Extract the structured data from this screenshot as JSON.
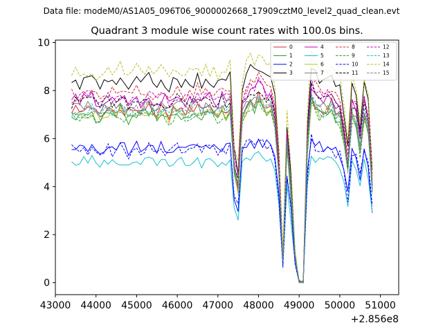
{
  "chart_data": {
    "type": "line",
    "suptitle": "Data file: modeM0/AS1A05_096T06_9000002668_17909cztM0_level2_quad_clean.evt",
    "title": "Quadrant 3 module wise count rates with 100.0s bins.",
    "xlabel": "",
    "ylabel": "",
    "x_offset_label": "+2.856e8",
    "xlim": [
      43000,
      51450
    ],
    "ylim": [
      -0.5,
      10.1
    ],
    "xticks": [
      43000,
      44000,
      45000,
      46000,
      47000,
      48000,
      49000,
      50000,
      51000
    ],
    "yticks": [
      0,
      2,
      4,
      6,
      8,
      10
    ],
    "legend_position": "top-right",
    "x_start": 43400,
    "x_step": 100,
    "template": [
      1,
      1,
      0.99,
      1.01,
      1,
      1.02,
      0.99,
      0.98,
      1,
      1.01,
      1,
      0.99,
      1.02,
      1,
      0.98,
      1,
      1.01,
      0.99,
      1,
      1.02,
      1,
      0.99,
      1.01,
      1,
      0.98,
      1,
      1.02,
      1,
      0.99,
      1.01,
      1,
      1.02,
      0.99,
      1,
      1.01,
      1,
      0.99,
      1.02,
      1,
      1.03,
      0.66,
      0.56,
      0.98,
      1.03,
      1.06,
      1.04,
      1.08,
      1.05,
      1.02,
      1.02,
      0.95,
      0.65,
      0.13,
      0.8,
      0.53,
      0.15,
      0.0,
      0.0,
      0.79,
      1.08,
      1.03,
      1.01,
      1.0,
      1.02,
      1.03,
      0.98,
      0.97,
      0.82,
      0.66,
      0.98,
      0.94,
      0.78,
      0.99,
      0.9,
      0.55
    ],
    "series": [
      {
        "name": "0",
        "color": "#d62728",
        "dash": false,
        "base": 7.2,
        "jitter": 0.28
      },
      {
        "name": "1",
        "color": "#2ca02c",
        "dash": false,
        "base": 7.0,
        "jitter": 0.28
      },
      {
        "name": "2",
        "color": "#0000ff",
        "dash": false,
        "base": 5.6,
        "jitter": 0.25
      },
      {
        "name": "3",
        "color": "#000000",
        "dash": false,
        "base": 8.35,
        "jitter": 0.25
      },
      {
        "name": "4",
        "color": "#bf00bf",
        "dash": false,
        "base": 7.6,
        "jitter": 0.28
      },
      {
        "name": "5",
        "color": "#17becf",
        "dash": false,
        "base": 5.0,
        "jitter": 0.22
      },
      {
        "name": "6",
        "color": "#bcbd22",
        "dash": false,
        "base": 7.0,
        "jitter": 0.25
      },
      {
        "name": "7",
        "color": "#7f7f7f",
        "dash": false,
        "base": 7.3,
        "jitter": 0.28
      },
      {
        "name": "8",
        "color": "#d62728",
        "dash": true,
        "base": 7.9,
        "jitter": 0.28
      },
      {
        "name": "9",
        "color": "#2ca02c",
        "dash": true,
        "base": 6.9,
        "jitter": 0.25
      },
      {
        "name": "10",
        "color": "#0000ff",
        "dash": true,
        "base": 5.5,
        "jitter": 0.28
      },
      {
        "name": "11",
        "color": "#000000",
        "dash": true,
        "base": 7.5,
        "jitter": 0.25
      },
      {
        "name": "12",
        "color": "#bf00bf",
        "dash": true,
        "base": 7.7,
        "jitter": 0.25
      },
      {
        "name": "13",
        "color": "#17becf",
        "dash": true,
        "base": 7.1,
        "jitter": 0.25
      },
      {
        "name": "14",
        "color": "#bcbd22",
        "dash": true,
        "base": 8.8,
        "jitter": 0.3
      },
      {
        "name": "15",
        "color": "#7f7f7f",
        "dash": true,
        "base": 7.2,
        "jitter": 0.25
      }
    ]
  }
}
